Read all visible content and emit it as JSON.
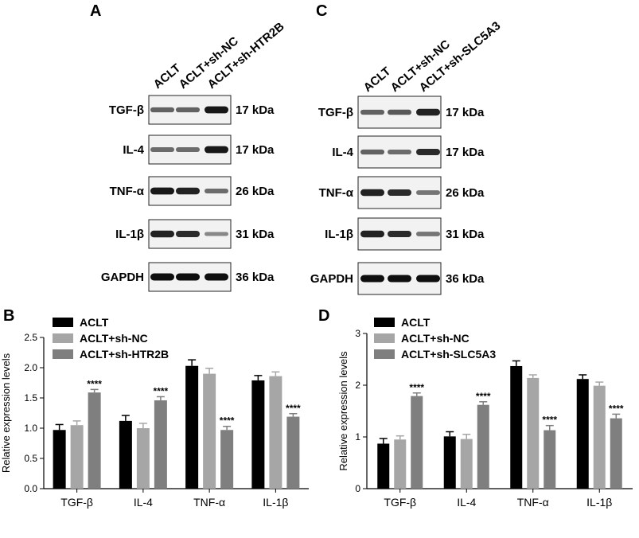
{
  "panels": {
    "A": "A",
    "B": "B",
    "C": "C",
    "D": "D"
  },
  "blot_A": {
    "lanes": [
      "ACLT",
      "ACLT+sh-NC",
      "ACLT+sh-HTR2B"
    ],
    "rows": [
      {
        "label": "TGF-β",
        "kda": "17 kDa",
        "intensity": [
          0.55,
          0.55,
          0.95
        ]
      },
      {
        "label": "IL-4",
        "kda": "17 kDa",
        "intensity": [
          0.5,
          0.5,
          0.95
        ]
      },
      {
        "label": "TNF-α",
        "kda": "26 kDa",
        "intensity": [
          0.95,
          0.9,
          0.5
        ]
      },
      {
        "label": "IL-1β",
        "kda": "31 kDa",
        "intensity": [
          0.9,
          0.85,
          0.35
        ]
      },
      {
        "label": "GAPDH",
        "kda": "36 kDa",
        "intensity": [
          1.0,
          1.0,
          1.0
        ]
      }
    ]
  },
  "blot_C": {
    "lanes": [
      "ACLT",
      "ACLT+sh-NC",
      "ACLT+sh-SLC5A3"
    ],
    "rows": [
      {
        "label": "TGF-β",
        "kda": "17 kDa",
        "intensity": [
          0.55,
          0.6,
          0.9
        ]
      },
      {
        "label": "IL-4",
        "kda": "17 kDa",
        "intensity": [
          0.55,
          0.5,
          0.85
        ]
      },
      {
        "label": "TNF-α",
        "kda": "26 kDa",
        "intensity": [
          0.9,
          0.85,
          0.45
        ]
      },
      {
        "label": "IL-1β",
        "kda": "31 kDa",
        "intensity": [
          0.9,
          0.85,
          0.45
        ]
      },
      {
        "label": "GAPDH",
        "kda": "36 kDa",
        "intensity": [
          1.0,
          1.0,
          1.0
        ]
      }
    ]
  },
  "chart_data": [
    {
      "type": "bar",
      "panel": "B",
      "categories": [
        "TGF-β",
        "IL-4",
        "TNF-α",
        "IL-1β"
      ],
      "ylabel": "Relative expression levels",
      "ylim": [
        0,
        2.5
      ],
      "yticks": [
        "0.0",
        "0.5",
        "1.0",
        "1.5",
        "2.0",
        "2.5"
      ],
      "legend_position": "top-left",
      "series": [
        {
          "name": "ACLT",
          "color": "#000000",
          "values": [
            0.97,
            1.12,
            2.03,
            1.79
          ],
          "errors": [
            0.09,
            0.09,
            0.1,
            0.08
          ]
        },
        {
          "name": "ACLT+sh-NC",
          "color": "#a6a6a6",
          "values": [
            1.05,
            1.0,
            1.9,
            1.86
          ],
          "errors": [
            0.07,
            0.08,
            0.09,
            0.07
          ]
        },
        {
          "name": "ACLT+sh-HTR2B",
          "color": "#7f7f7f",
          "values": [
            1.59,
            1.46,
            0.97,
            1.19
          ],
          "errors": [
            0.05,
            0.06,
            0.06,
            0.05
          ]
        }
      ],
      "annotations": [
        "****",
        "****",
        "****",
        "****"
      ]
    },
    {
      "type": "bar",
      "panel": "D",
      "categories": [
        "TGF-β",
        "IL-4",
        "TNF-α",
        "IL-1β"
      ],
      "ylabel": "Relative expression levels",
      "ylim": [
        0,
        3
      ],
      "yticks": [
        "0",
        "1",
        "2",
        "3"
      ],
      "legend_position": "top-left",
      "series": [
        {
          "name": "ACLT",
          "color": "#000000",
          "values": [
            0.87,
            1.01,
            2.37,
            2.12
          ],
          "errors": [
            0.1,
            0.09,
            0.1,
            0.08
          ]
        },
        {
          "name": "ACLT+sh-NC",
          "color": "#a6a6a6",
          "values": [
            0.95,
            0.96,
            2.14,
            1.99
          ],
          "errors": [
            0.07,
            0.09,
            0.06,
            0.07
          ]
        },
        {
          "name": "ACLT+sh-SLC5A3",
          "color": "#7f7f7f",
          "values": [
            1.79,
            1.62,
            1.13,
            1.36
          ],
          "errors": [
            0.06,
            0.06,
            0.09,
            0.08
          ]
        }
      ],
      "annotations": [
        "****",
        "****",
        "****",
        "****"
      ]
    }
  ]
}
